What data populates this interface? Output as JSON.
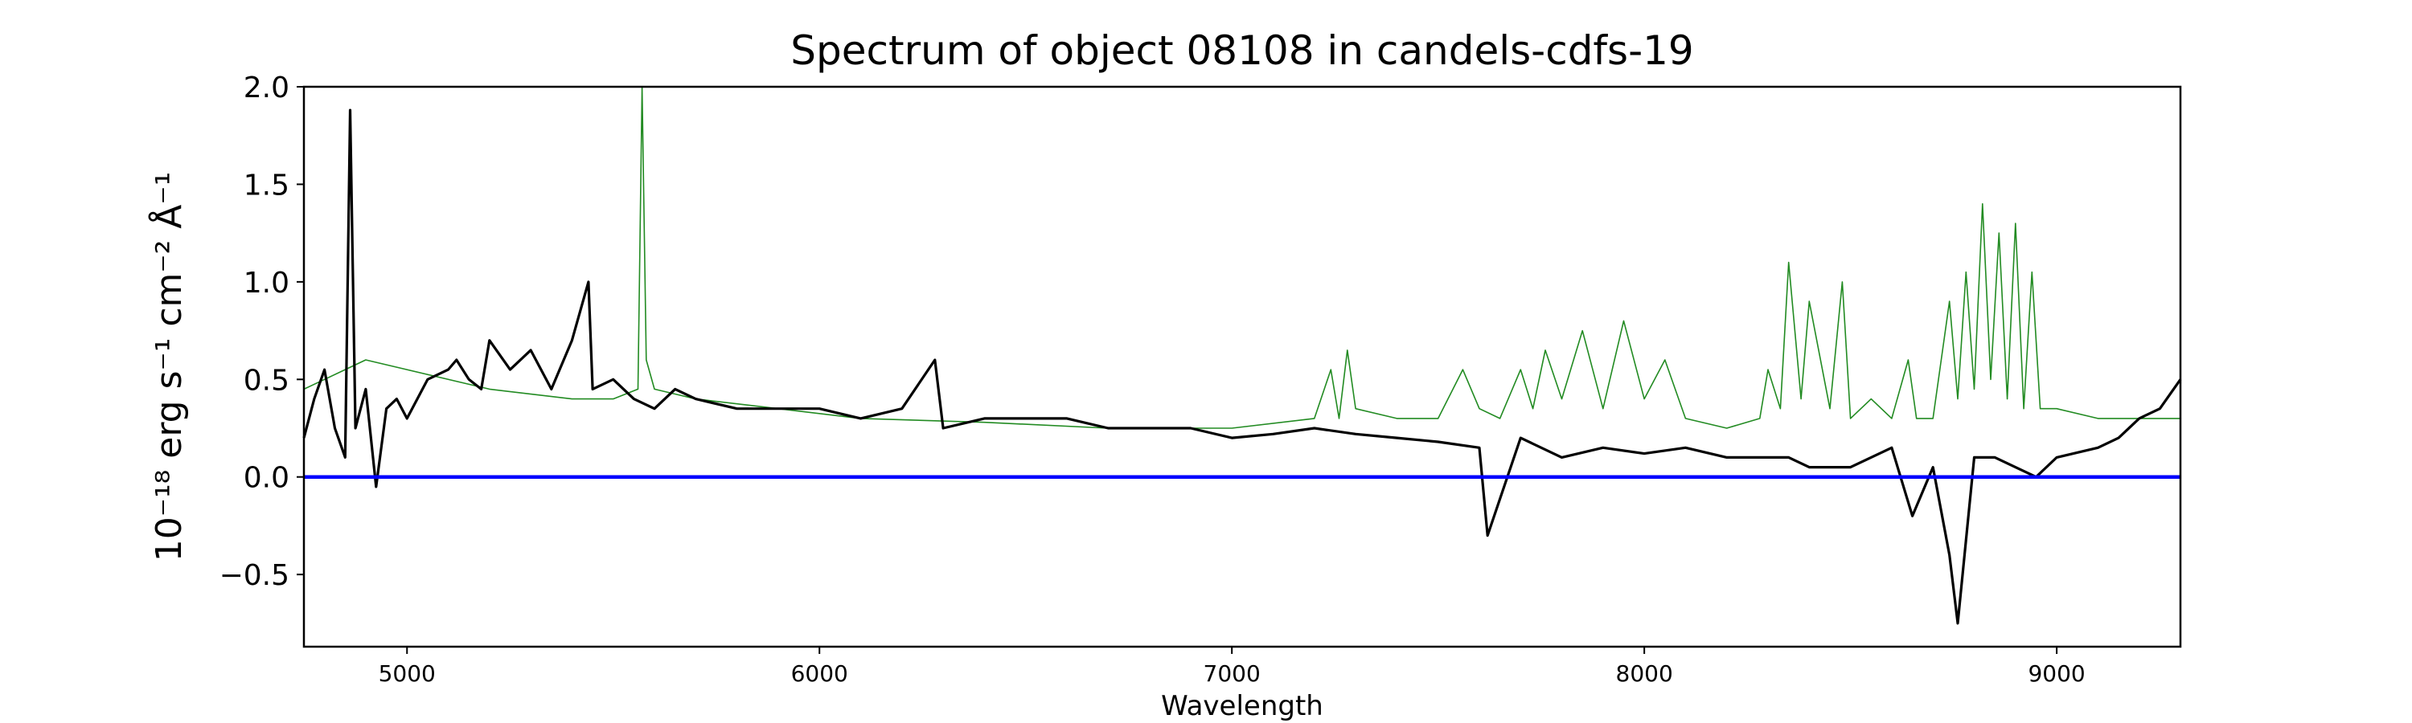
{
  "chart_data": {
    "type": "line",
    "title": "Spectrum of object 08108 in candels-cdfs-19",
    "xlabel": "Wavelength",
    "ylabel": "10⁻¹⁸ erg s⁻¹ cm⁻² Å⁻¹",
    "xlim": [
      4750,
      9300
    ],
    "ylim": [
      -0.87,
      2.0
    ],
    "x_ticks": [
      5000,
      6000,
      7000,
      8000,
      9000
    ],
    "x_tick_labels": [
      "5000",
      "6000",
      "7000",
      "8000",
      "9000"
    ],
    "y_ticks": [
      -0.5,
      0.0,
      0.5,
      1.0,
      1.5,
      2.0
    ],
    "y_tick_labels": [
      "−0.5",
      "0.0",
      "0.5",
      "1.0",
      "1.5",
      "2.0"
    ],
    "grid": false,
    "legend": "none",
    "zero_line": {
      "y": 0.0,
      "color": "#0000ff"
    },
    "series": [
      {
        "color": "#000000",
        "x": [
          4750,
          4775,
          4800,
          4825,
          4850,
          4862,
          4875,
          4900,
          4925,
          4950,
          4975,
          5000,
          5050,
          5100,
          5120,
          5150,
          5180,
          5200,
          5250,
          5300,
          5350,
          5400,
          5440,
          5450,
          5500,
          5550,
          5600,
          5650,
          5700,
          5800,
          5900,
          6000,
          6100,
          6200,
          6280,
          6300,
          6400,
          6500,
          6600,
          6700,
          6800,
          6900,
          7000,
          7100,
          7200,
          7300,
          7400,
          7500,
          7600,
          7620,
          7700,
          7800,
          7900,
          8000,
          8100,
          8200,
          8300,
          8350,
          8400,
          8500,
          8600,
          8650,
          8700,
          8740,
          8760,
          8800,
          8850,
          8900,
          8950,
          9000,
          9100,
          9150,
          9200,
          9250,
          9300
        ],
        "y": [
          0.2,
          0.4,
          0.55,
          0.25,
          0.1,
          1.88,
          0.25,
          0.45,
          -0.05,
          0.35,
          0.4,
          0.3,
          0.5,
          0.55,
          0.6,
          0.5,
          0.45,
          0.7,
          0.55,
          0.65,
          0.45,
          0.7,
          1.0,
          0.45,
          0.5,
          0.4,
          0.35,
          0.45,
          0.4,
          0.35,
          0.35,
          0.35,
          0.3,
          0.35,
          0.6,
          0.25,
          0.3,
          0.3,
          0.3,
          0.25,
          0.25,
          0.25,
          0.2,
          0.22,
          0.25,
          0.22,
          0.2,
          0.18,
          0.15,
          -0.3,
          0.2,
          0.1,
          0.15,
          0.12,
          0.15,
          0.1,
          0.1,
          0.1,
          0.05,
          0.05,
          0.15,
          -0.2,
          0.05,
          -0.4,
          -0.75,
          0.1,
          0.1,
          0.05,
          0.0,
          0.1,
          0.15,
          0.2,
          0.3,
          0.35,
          0.5
        ]
      },
      {
        "color": "#228b22",
        "x": [
          4750,
          4800,
          4850,
          4900,
          5000,
          5200,
          5400,
          5500,
          5560,
          5570,
          5580,
          5600,
          5700,
          5900,
          6100,
          6400,
          6700,
          7000,
          7200,
          7240,
          7260,
          7280,
          7300,
          7400,
          7500,
          7560,
          7600,
          7650,
          7700,
          7730,
          7760,
          7800,
          7850,
          7900,
          7950,
          8000,
          8050,
          8100,
          8200,
          8280,
          8300,
          8330,
          8350,
          8380,
          8400,
          8450,
          8480,
          8500,
          8550,
          8600,
          8640,
          8660,
          8700,
          8740,
          8760,
          8780,
          8800,
          8820,
          8840,
          8860,
          8880,
          8900,
          8920,
          8940,
          8960,
          9000,
          9100,
          9200,
          9300
        ],
        "y": [
          0.45,
          0.5,
          0.55,
          0.6,
          0.55,
          0.45,
          0.4,
          0.4,
          0.45,
          2.0,
          0.6,
          0.45,
          0.4,
          0.35,
          0.3,
          0.28,
          0.25,
          0.25,
          0.3,
          0.55,
          0.3,
          0.65,
          0.35,
          0.3,
          0.3,
          0.55,
          0.35,
          0.3,
          0.55,
          0.35,
          0.65,
          0.4,
          0.75,
          0.35,
          0.8,
          0.4,
          0.6,
          0.3,
          0.25,
          0.3,
          0.55,
          0.35,
          1.1,
          0.4,
          0.9,
          0.35,
          1.0,
          0.3,
          0.4,
          0.3,
          0.6,
          0.3,
          0.3,
          0.9,
          0.4,
          1.05,
          0.45,
          1.4,
          0.5,
          1.25,
          0.4,
          1.3,
          0.35,
          1.05,
          0.35,
          0.35,
          0.3,
          0.3,
          0.3
        ]
      }
    ]
  }
}
